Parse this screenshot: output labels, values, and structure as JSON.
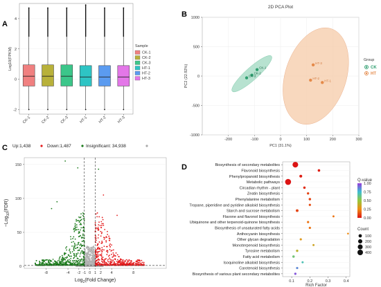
{
  "chart_data": [
    {
      "panel": "A",
      "type": "box",
      "ylabel": "Log10(FPKM)",
      "categories": [
        "CK-1",
        "CK-2",
        "CK-3",
        "HT-1",
        "HT-2",
        "HT-3"
      ],
      "ylim": [
        -2.3,
        5
      ],
      "yticks": [
        -2,
        0,
        2,
        4
      ],
      "series": [
        {
          "name": "CK-1",
          "color": "#F08080",
          "q1": -0.45,
          "median": 0.2,
          "q3": 0.95,
          "whisker_low": -2.0,
          "whisker_high": 2.8,
          "max": 4.7,
          "min": -2.0
        },
        {
          "name": "CK-2",
          "color": "#B8B13A",
          "q1": -0.45,
          "median": 0.2,
          "q3": 0.95,
          "whisker_low": -2.0,
          "whisker_high": 2.8,
          "max": 4.7,
          "min": -2.0
        },
        {
          "name": "CK-3",
          "color": "#3CC68A",
          "q1": -0.45,
          "median": 0.2,
          "q3": 0.95,
          "whisker_low": -2.0,
          "whisker_high": 2.8,
          "max": 4.7,
          "min": -2.0
        },
        {
          "name": "HT-1",
          "color": "#2EC4C4",
          "q1": -0.45,
          "median": 0.15,
          "q3": 0.9,
          "whisker_low": -2.0,
          "whisker_high": 2.8,
          "max": 4.9,
          "min": -2.0
        },
        {
          "name": "HT-2",
          "color": "#5B9BF0",
          "q1": -0.45,
          "median": 0.15,
          "q3": 0.9,
          "whisker_low": -2.0,
          "whisker_high": 2.8,
          "max": 4.7,
          "min": -2.0
        },
        {
          "name": "HT-3",
          "color": "#E377E8",
          "q1": -0.45,
          "median": 0.15,
          "q3": 0.9,
          "whisker_low": -2.0,
          "whisker_high": 2.8,
          "max": 4.7,
          "min": -2.0
        }
      ],
      "legend_title": "Sample",
      "legend": [
        "CK-1",
        "CK-2",
        "CK-3",
        "HT-1",
        "HT-2",
        "HT-3"
      ]
    },
    {
      "panel": "B",
      "type": "scatter",
      "title": "2D PCA Plot",
      "xlabel": "PC1 (31.1%)",
      "ylabel": "PC2 (22.92%)",
      "xlim": [
        -300,
        300
      ],
      "ylim": [
        -1000,
        1000
      ],
      "xticks": [
        -200,
        -100,
        0,
        100,
        200,
        300
      ],
      "yticks": [
        -1000,
        -500,
        0,
        500,
        1000
      ],
      "legend_title": "Group",
      "series": [
        {
          "name": "CK",
          "color": "#2E9E6F",
          "ellipse_color": "#9FD8C0",
          "points": [
            {
              "label": "CK-1",
              "x": -90,
              "y": 110
            },
            {
              "label": "CK-2",
              "x": -110,
              "y": 15
            },
            {
              "label": "CK-3",
              "x": -130,
              "y": -30
            }
          ]
        },
        {
          "name": "HT",
          "color": "#E58A4A",
          "ellipse_color": "#F6CBA8",
          "points": [
            {
              "label": "HT-3",
              "x": 125,
              "y": 190
            },
            {
              "label": "HT-2",
              "x": 115,
              "y": -70
            },
            {
              "label": "HT-1",
              "x": 160,
              "y": -110
            }
          ]
        }
      ]
    },
    {
      "panel": "C",
      "type": "scatter",
      "xlabel": "Log2(Fold Change)",
      "ylabel": "-Log10(FDR)",
      "xlim": [
        -12,
        14
      ],
      "ylim": [
        -3,
        160
      ],
      "xticks": [
        -8,
        -4,
        -2,
        -1,
        0,
        1,
        2,
        4,
        8
      ],
      "yticks": [
        0,
        50,
        100,
        150
      ],
      "legend": [
        {
          "label": "Up:1,438",
          "color": "#E41A1C"
        },
        {
          "label": "Down:1,487",
          "color": "#1B7A1B"
        },
        {
          "label": "Insignificant: 34,938",
          "color": "#AAAAAA"
        }
      ],
      "thresholds_x": [
        -1,
        1
      ],
      "threshold_y": 1.3
    },
    {
      "panel": "D",
      "type": "scatter",
      "xlabel": "Rich Factor",
      "xlim": [
        0.05,
        0.42
      ],
      "xticks": [
        0.1,
        0.2,
        0.3,
        0.4
      ],
      "legend_color_title": "Q-value",
      "legend_color_ticks": [
        "1.00",
        "0.75",
        "0.50",
        "0.25",
        "0.00"
      ],
      "legend_size_title": "Count",
      "legend_size_ticks": [
        100,
        200,
        300,
        400
      ],
      "pathways": [
        {
          "name": "Biosynthesis of secondary metabolites",
          "rich": 0.12,
          "q": 0.0,
          "count": 420
        },
        {
          "name": "Flavonoid biosynthesis",
          "rich": 0.25,
          "q": 0.02,
          "count": 40
        },
        {
          "name": "Phenylpropanoid biosynthesis",
          "rich": 0.15,
          "q": 0.02,
          "count": 60
        },
        {
          "name": "Metabolic pathways",
          "rich": 0.08,
          "q": 0.0,
          "count": 480
        },
        {
          "name": "Circadian rhythm - plant",
          "rich": 0.17,
          "q": 0.05,
          "count": 35
        },
        {
          "name": "Zeatin biosynthesis",
          "rich": 0.19,
          "q": 0.1,
          "count": 30
        },
        {
          "name": "Phenylalanine metabolism",
          "rich": 0.2,
          "q": 0.1,
          "count": 35
        },
        {
          "name": "Tropane, piperidine and pyridine alkaloid biosynthesis",
          "rich": 0.2,
          "q": 0.12,
          "count": 25
        },
        {
          "name": "Starch and sucrose metabolism",
          "rich": 0.13,
          "q": 0.1,
          "count": 55
        },
        {
          "name": "Flavone and flavonol biosynthesis",
          "rich": 0.33,
          "q": 0.2,
          "count": 15
        },
        {
          "name": "Ubiquinone and other terpenoid-quinone biosynthesis",
          "rich": 0.19,
          "q": 0.2,
          "count": 25
        },
        {
          "name": "Biosynthesis of unsaturated fatty acids",
          "rich": 0.2,
          "q": 0.2,
          "count": 25
        },
        {
          "name": "Anthocyanin biosynthesis",
          "rich": 0.41,
          "q": 0.25,
          "count": 10
        },
        {
          "name": "Other glycan degradation",
          "rich": 0.15,
          "q": 0.3,
          "count": 25
        },
        {
          "name": "Monoterpenoid biosynthesis",
          "rich": 0.22,
          "q": 0.35,
          "count": 15
        },
        {
          "name": "Tyrosine metabolism",
          "rich": 0.13,
          "q": 0.4,
          "count": 30
        },
        {
          "name": "Fatty acid metabolism",
          "rich": 0.11,
          "q": 0.6,
          "count": 35
        },
        {
          "name": "Isoquinoline alkaloid biosynthesis",
          "rich": 0.16,
          "q": 0.7,
          "count": 20
        },
        {
          "name": "Carotenoid biosynthesis",
          "rich": 0.13,
          "q": 0.85,
          "count": 25
        },
        {
          "name": "Biosynthesis of various plant secondary metabolites",
          "rich": 0.12,
          "q": 0.95,
          "count": 25
        }
      ]
    }
  ],
  "panel_labels": {
    "a": "A",
    "b": "B",
    "c": "C",
    "d": "D"
  },
  "pca_group_ck": "CK",
  "pca_group_ht": "HT",
  "volcano_up": "Up:1,438",
  "volcano_down": "Down:1,487",
  "volcano_insig": "Insignificant: 34,938",
  "volcano_ylabel_prefix": "−Log",
  "volcano_ylabel_sub": "10",
  "volcano_ylabel_suffix": "(FDR)",
  "volcano_xlabel_prefix": "Log",
  "volcano_xlabel_sub": "2",
  "volcano_xlabel_suffix": "(Fold Change)"
}
